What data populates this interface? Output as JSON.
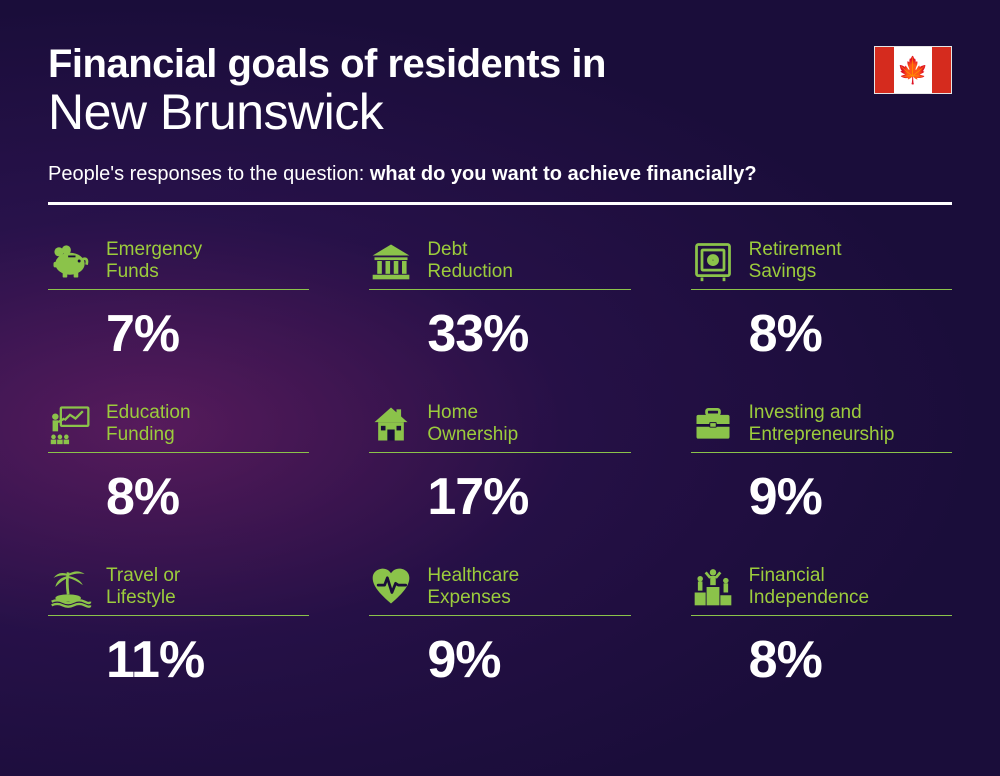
{
  "header": {
    "title_line1": "Financial goals of residents in",
    "title_line2": "New Brunswick",
    "subtitle_prefix": "People's responses to the question: ",
    "subtitle_bold": "what do you want to achieve financially?"
  },
  "style": {
    "accent_color": "#9ccc3c",
    "icon_color": "#8bc34a",
    "text_color": "#ffffff",
    "value_fontsize": 52,
    "label_fontsize": 19,
    "background": "dark purple gradient with magenta glow"
  },
  "flag": {
    "country": "Canada",
    "bar_color": "#d52b1e",
    "bg_color": "#ffffff"
  },
  "items": [
    {
      "label": "Emergency\nFunds",
      "value": "7%",
      "icon": "piggy-bank"
    },
    {
      "label": "Debt\nReduction",
      "value": "33%",
      "icon": "bank"
    },
    {
      "label": "Retirement\nSavings",
      "value": "8%",
      "icon": "safe"
    },
    {
      "label": "Education\nFunding",
      "value": "8%",
      "icon": "presentation"
    },
    {
      "label": "Home\nOwnership",
      "value": "17%",
      "icon": "house"
    },
    {
      "label": "Investing and\nEntrepreneurship",
      "value": "9%",
      "icon": "briefcase"
    },
    {
      "label": "Travel or\nLifestyle",
      "value": "11%",
      "icon": "island"
    },
    {
      "label": "Healthcare\nExpenses",
      "value": "9%",
      "icon": "heart-pulse"
    },
    {
      "label": "Financial\nIndependence",
      "value": "8%",
      "icon": "podium"
    }
  ]
}
